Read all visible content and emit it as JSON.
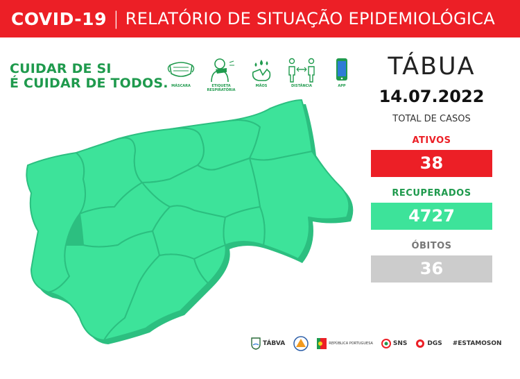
{
  "header": {
    "title_bold": "COVID-19",
    "separator": "|",
    "title_light": "RELATÓRIO DE SITUAÇÃO EPIDEMIOLÓGICA"
  },
  "slogan": {
    "line1": "CUIDAR DE SI",
    "line2": "É CUIDAR DE TODOS."
  },
  "measures": [
    {
      "icon": "mask-icon",
      "label": "MÁSCARA"
    },
    {
      "icon": "cough-etiquette-icon",
      "label": "ETIQUETA RESPIRATÓRIA"
    },
    {
      "icon": "hand-wash-icon",
      "label": "MÃOS"
    },
    {
      "icon": "distance-icon",
      "label": "DISTÂNCIA"
    },
    {
      "icon": "phone-app-icon",
      "label": "APP"
    }
  ],
  "report": {
    "town": "TÁBUA",
    "date": "14.07.2022",
    "total_label": "TOTAL DE CASOS"
  },
  "stats": {
    "active": {
      "label": "ATIVOS",
      "value": "38",
      "color": "#ec1f26"
    },
    "recovered": {
      "label": "RECUPERADOS",
      "value": "4727",
      "color": "#3de39a"
    },
    "deaths": {
      "label": "ÓBITOS",
      "value": "36",
      "color": "#cccccc"
    }
  },
  "map": {
    "fill_color": "#3de39a",
    "shadow_color": "#2cbf80"
  },
  "logos": [
    {
      "name": "tabua-logo",
      "text": "TÁBVA"
    },
    {
      "name": "civil-protection-logo",
      "text": ""
    },
    {
      "name": "republica-logo",
      "text": "REPÚBLICA PORTUGUESA"
    },
    {
      "name": "sns-logo",
      "text": "SNS"
    },
    {
      "name": "dgs-logo",
      "text": "DGS"
    },
    {
      "name": "estamoson-logo",
      "text": "#ESTAMOSON"
    }
  ]
}
